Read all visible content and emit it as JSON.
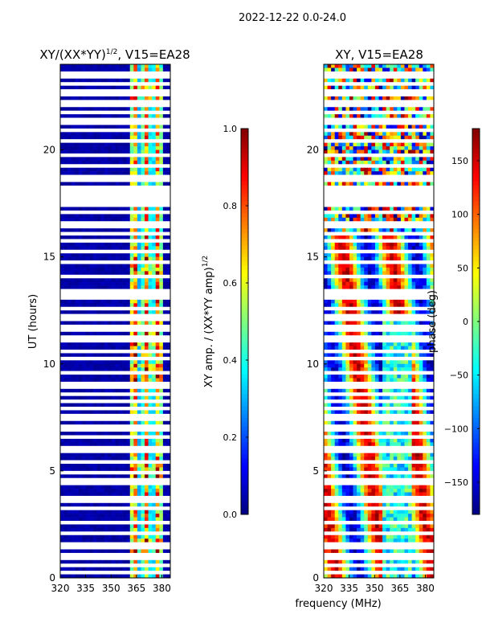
{
  "suptitle": "2022-12-22 0.0-24.0",
  "shared_xlabel": "frequency (MHz)",
  "chart_data": [
    {
      "type": "heatmap",
      "title": "XY/(XX*YY)^(1/2), V15=EA28",
      "title_main": "XY/(XX*YY)",
      "title_exp": "1/2",
      "title_suffix": ", V15=EA28",
      "ylabel": "UT (hours)",
      "xlim": [
        320,
        385
      ],
      "ylim": [
        0,
        24
      ],
      "xticks": [
        320,
        335,
        350,
        365,
        380
      ],
      "yticks": [
        0,
        5,
        10,
        15,
        20
      ],
      "colorbar": {
        "label": "XY amp. / (XX*YY amp)^(1/2)",
        "label_main": "XY amp. / (XX*YY amp)",
        "label_exp": "1/2",
        "range": [
          0.0,
          1.0
        ],
        "ticks": [
          0.0,
          0.2,
          0.4,
          0.6,
          0.8,
          1.0
        ],
        "tick_labels": [
          "0.0",
          "0.2",
          "0.4",
          "0.6",
          "0.8",
          "1.0"
        ],
        "colormap": "jet"
      },
      "features": {
        "background_value": 0.02,
        "active_band_mhz": [
          362,
          381
        ],
        "active_band_value": 0.5,
        "hot_spots_hours": [
          1.3,
          5.0,
          9.5,
          10.8,
          11.8,
          14.5,
          22.5
        ]
      }
    },
    {
      "type": "heatmap",
      "title": "XY, V15=EA28",
      "ylabel": "",
      "xlim": [
        320,
        385
      ],
      "ylim": [
        0,
        24
      ],
      "xticks": [
        320,
        335,
        350,
        365,
        380
      ],
      "yticks": [
        0,
        5,
        10,
        15,
        20
      ],
      "colorbar": {
        "label": "phase (deg)",
        "range": [
          -180,
          180
        ],
        "ticks": [
          -150,
          -100,
          -50,
          0,
          50,
          100,
          150
        ],
        "tick_labels": [
          "−150",
          "−100",
          "−50",
          "0",
          "50",
          "100",
          "150"
        ],
        "colormap": "jet"
      },
      "features": {
        "noisy_phase_hours": [
          16.2,
          24.0
        ],
        "coherent_phase_hours": [
          0.0,
          16.2
        ]
      }
    }
  ],
  "blank_rows_hours": [
    0.3,
    0.55,
    1.0,
    1.5,
    2.1,
    2.55,
    3.3,
    3.55,
    3.75,
    4.5,
    4.85,
    5.4,
    6.0,
    6.6,
    7.0,
    7.4,
    7.65,
    7.9,
    8.3,
    8.65,
    9.0,
    9.55,
    10.3,
    10.55,
    11.05,
    11.3,
    11.55,
    11.75,
    12.05,
    12.3,
    12.55,
    13.05,
    13.15,
    13.3,
    13.45,
    14.1,
    14.75,
    15.25,
    15.7,
    16.15,
    16.5,
    17.05,
    17.5,
    17.8,
    18.0,
    18.3,
    18.55,
    18.8,
    19.3,
    19.8,
    20.45,
    20.95,
    21.2,
    21.45,
    21.8,
    22.05,
    22.3,
    22.55,
    22.8,
    23.1,
    23.35,
    23.6
  ]
}
